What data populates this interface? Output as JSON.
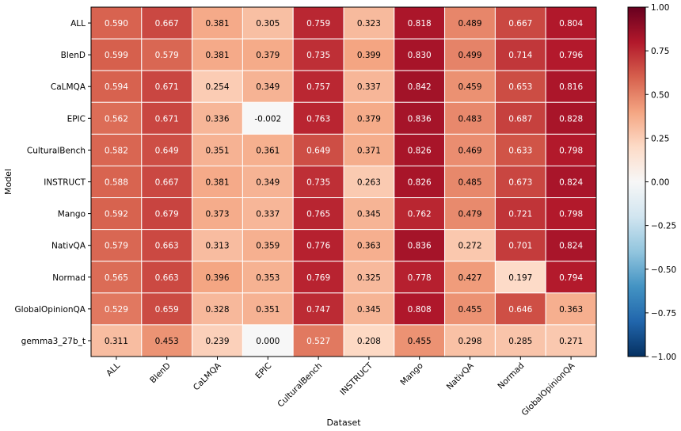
{
  "chart_data": {
    "type": "heatmap",
    "title": "",
    "xlabel": "Dataset",
    "ylabel": "Model",
    "x_categories": [
      "ALL",
      "BlenD",
      "CaLMQA",
      "EPIC",
      "CulturalBench",
      "INSTRUCT",
      "Mango",
      "NativQA",
      "Normad",
      "GlobalOpinionQA"
    ],
    "y_categories": [
      "ALL",
      "BlenD",
      "CaLMQA",
      "EPIC",
      "CulturalBench",
      "INSTRUCT",
      "Mango",
      "NativQA",
      "Normad",
      "GlobalOpinionQA",
      "gemma3_27b_t"
    ],
    "values": [
      [
        0.59,
        0.667,
        0.381,
        0.305,
        0.759,
        0.323,
        0.818,
        0.489,
        0.667,
        0.804
      ],
      [
        0.599,
        0.579,
        0.381,
        0.379,
        0.735,
        0.399,
        0.83,
        0.499,
        0.714,
        0.796
      ],
      [
        0.594,
        0.671,
        0.254,
        0.349,
        0.757,
        0.337,
        0.842,
        0.459,
        0.653,
        0.816
      ],
      [
        0.562,
        0.671,
        0.336,
        -0.002,
        0.763,
        0.379,
        0.836,
        0.483,
        0.687,
        0.828
      ],
      [
        0.582,
        0.649,
        0.351,
        0.361,
        0.649,
        0.371,
        0.826,
        0.469,
        0.633,
        0.798
      ],
      [
        0.588,
        0.667,
        0.381,
        0.349,
        0.735,
        0.263,
        0.826,
        0.485,
        0.673,
        0.824
      ],
      [
        0.592,
        0.679,
        0.373,
        0.337,
        0.765,
        0.345,
        0.762,
        0.479,
        0.721,
        0.798
      ],
      [
        0.579,
        0.663,
        0.313,
        0.359,
        0.776,
        0.363,
        0.836,
        0.272,
        0.701,
        0.824
      ],
      [
        0.565,
        0.663,
        0.396,
        0.353,
        0.769,
        0.325,
        0.778,
        0.427,
        0.197,
        0.794
      ],
      [
        0.529,
        0.659,
        0.328,
        0.351,
        0.747,
        0.345,
        0.808,
        0.455,
        0.646,
        0.363
      ],
      [
        0.311,
        0.453,
        0.239,
        0.0,
        0.527,
        0.208,
        0.455,
        0.298,
        0.285,
        0.271
      ]
    ],
    "value_format": "3 decimals",
    "colormap": "RdBu_r",
    "vmin": -1.0,
    "vmax": 1.0,
    "colorbar_ticks": [
      "1.00",
      "0.75",
      "0.50",
      "0.25",
      "0.00",
      "−0.25",
      "−0.50",
      "−0.75",
      "−1.00"
    ],
    "colorbar_tick_values": [
      1.0,
      0.75,
      0.5,
      0.25,
      0.0,
      -0.25,
      -0.5,
      -0.75,
      -1.0
    ],
    "annotation_text_light": "#ffffff",
    "annotation_text_dark": "#000000",
    "grid": "white cell borders"
  }
}
